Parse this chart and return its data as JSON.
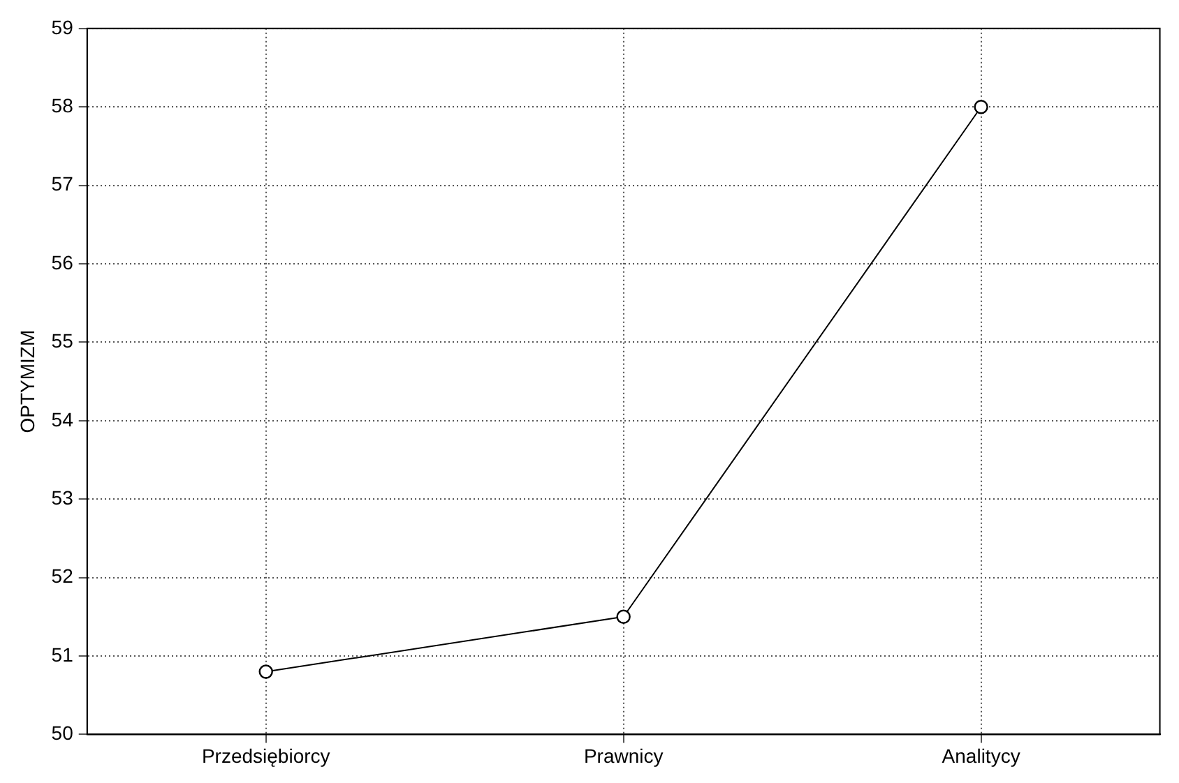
{
  "chart_data": {
    "type": "line",
    "ylabel": "OPTYMIZM",
    "categories": [
      "Przedsiębiorcy",
      "Prawnicy",
      "Analitycy"
    ],
    "series": [
      {
        "color": "#000000",
        "values": [
          50.8,
          51.5,
          58.0
        ]
      }
    ],
    "ylim": [
      50,
      59
    ],
    "yticks": [
      50,
      51,
      52,
      53,
      54,
      55,
      56,
      57,
      58,
      59
    ],
    "grid": true,
    "marker": "circle",
    "line_style": "solid"
  }
}
